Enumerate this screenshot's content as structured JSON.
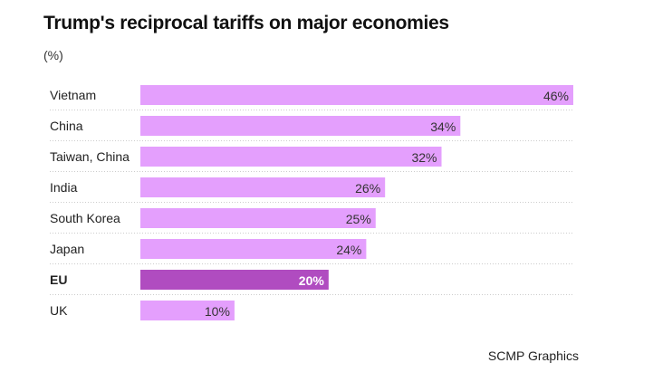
{
  "chart_data": {
    "type": "bar",
    "orientation": "horizontal",
    "title": "Trump's reciprocal tariffs on major economies",
    "unit_label": "(%)",
    "categories": [
      "Vietnam",
      "China",
      "Taiwan, China",
      "India",
      "South Korea",
      "Japan",
      "EU",
      "UK"
    ],
    "values": [
      46,
      34,
      32,
      26,
      25,
      24,
      20,
      10
    ],
    "data_labels": [
      "46%",
      "34%",
      "32%",
      "26%",
      "25%",
      "24%",
      "20%",
      "10%"
    ],
    "highlight": "EU",
    "xlim": [
      0,
      46
    ],
    "colors": {
      "default": "#e49ffd",
      "highlight": "#b04cc0"
    },
    "source": "SCMP Graphics"
  }
}
